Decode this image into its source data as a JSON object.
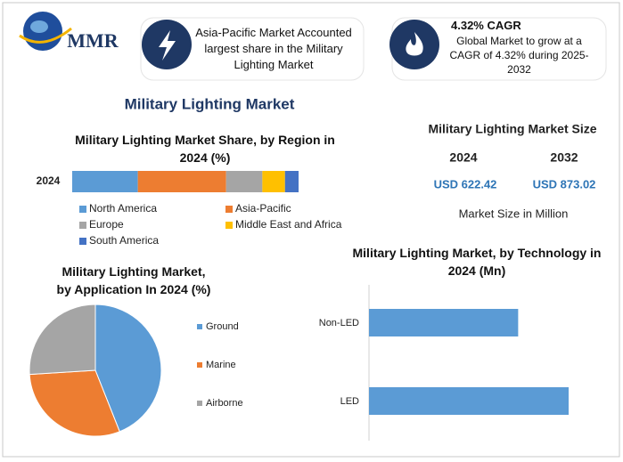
{
  "header": {
    "logo": "MMR",
    "highlight": "Asia-Pacific Market Accounted largest share in the Military Lighting Market",
    "cagr_title": "4.32% CAGR",
    "cagr_text": "Global Market to grow at a CAGR of 4.32% during 2025-2032"
  },
  "title": "Military Lighting Market",
  "market_size": {
    "title": "Military Lighting Market Size",
    "items": [
      {
        "year": "2024",
        "value": "USD 622.42"
      },
      {
        "year": "2032",
        "value": "USD 873.02"
      }
    ],
    "note": "Market Size in Million"
  },
  "chart_data": [
    {
      "type": "stacked-hbar",
      "title": "Military Lighting Market Share, by Region in 2024 (%)",
      "categories": [
        "2024"
      ],
      "series": [
        {
          "name": "North America",
          "color": "#5b9bd5",
          "values": [
            29
          ]
        },
        {
          "name": "Asia-Pacific",
          "color": "#ed7d31",
          "values": [
            39
          ]
        },
        {
          "name": "Europe",
          "color": "#a5a5a5",
          "values": [
            16
          ]
        },
        {
          "name": "Middle East and Africa",
          "color": "#ffc000",
          "values": [
            10
          ]
        },
        {
          "name": "South America",
          "color": "#4472c4",
          "values": [
            6
          ]
        }
      ]
    },
    {
      "type": "pie",
      "title": "Military Lighting Market, by Application In 2024 (%)",
      "categories": [
        "Ground",
        "Marine",
        "Airborne"
      ],
      "values": [
        44,
        30,
        26
      ],
      "colors": [
        "#5b9bd5",
        "#ed7d31",
        "#a5a5a5"
      ]
    },
    {
      "type": "hbar",
      "title": "Military Lighting Market, by Technology in 2024 (Mn)",
      "categories": [
        "Non-LED",
        "LED"
      ],
      "values": [
        266,
        356
      ],
      "color": "#5b9bd5"
    }
  ]
}
